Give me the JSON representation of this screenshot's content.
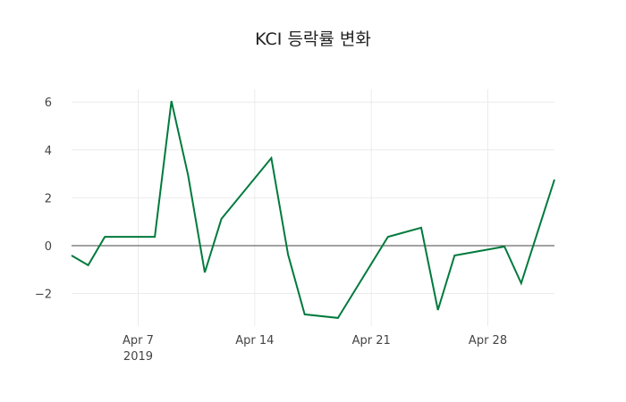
{
  "chart_data": {
    "type": "line",
    "title": "KCI 등락률 변화",
    "xlabel": "",
    "ylabel": "",
    "x": [
      "2019-04-03",
      "2019-04-04",
      "2019-04-05",
      "2019-04-08",
      "2019-04-09",
      "2019-04-10",
      "2019-04-11",
      "2019-04-12",
      "2019-04-15",
      "2019-04-16",
      "2019-04-17",
      "2019-04-19",
      "2019-04-22",
      "2019-04-24",
      "2019-04-25",
      "2019-04-26",
      "2019-04-29",
      "2019-04-30",
      "2019-05-02"
    ],
    "series": [
      {
        "name": "KCI",
        "color": "#007a3d",
        "values": [
          -0.41,
          -0.82,
          0.37,
          0.37,
          6.04,
          2.95,
          -1.12,
          1.12,
          3.66,
          -0.37,
          -2.87,
          -3.02,
          0.37,
          0.75,
          -2.69,
          -0.41,
          -0.04,
          -1.57,
          2.76
        ]
      }
    ],
    "ylim": [
      -3.36,
      6.53
    ],
    "xlim": [
      "2019-04-03",
      "2019-05-02"
    ],
    "yticks": [
      -2,
      0,
      2,
      4,
      6
    ],
    "ytick_labels": [
      "−2",
      "0",
      "2",
      "4",
      "6"
    ],
    "xticks": [
      "2019-04-07",
      "2019-04-14",
      "2019-04-21",
      "2019-04-28"
    ],
    "xtick_labels": [
      "Apr 7",
      "Apr 14",
      "Apr 21",
      "Apr 28"
    ],
    "xtick_sublabel": "2019",
    "grid": true,
    "zeroline": true,
    "legend": false
  }
}
